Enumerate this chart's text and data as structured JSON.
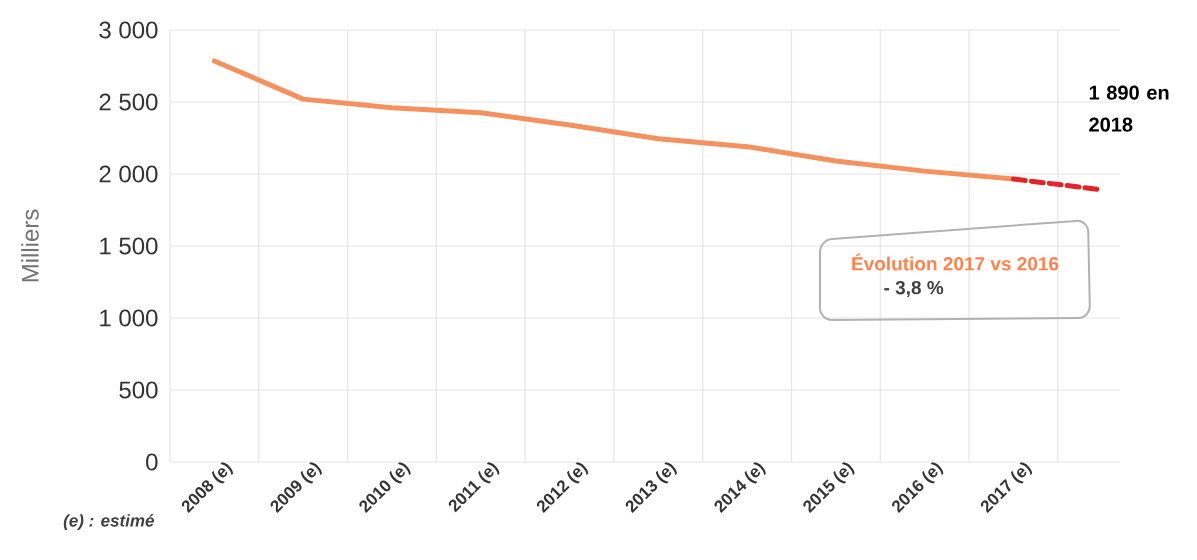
{
  "chart_data": {
    "type": "line",
    "ylabel": "Milliers",
    "categories": [
      "2008 (e)",
      "2009 (e)",
      "2010 (e)",
      "2011 (e)",
      "2012 (e)",
      "2013 (e)",
      "2014 (e)",
      "2015 (e)",
      "2016 (e)",
      "2017 (e)",
      null
    ],
    "series": [
      {
        "color": "#f4915e",
        "line_style": "solid",
        "values": [
          2785,
          2520,
          2460,
          2425,
          2340,
          2245,
          2190,
          2090,
          2020,
          1965,
          null
        ]
      },
      {
        "color": "#e3242b",
        "line_style": "dashed",
        "values": [
          null,
          null,
          null,
          null,
          null,
          null,
          null,
          null,
          null,
          1965,
          1890
        ]
      }
    ],
    "ylim": [
      0,
      3000
    ],
    "yticks": [
      0,
      500,
      {
        "value": 1000,
        "label": "1 000"
      },
      {
        "value": 1500,
        "label": "1 500"
      },
      {
        "value": 2000,
        "label": "2 000"
      },
      {
        "value": 2500,
        "label": "2 500"
      },
      {
        "value": 3000,
        "label": "3 000"
      }
    ],
    "grid": true,
    "marker": "none",
    "annotations": [
      "(e) : estimé",
      "Évolution 2017 vs 2016",
      "- 3,8 %",
      "1 890 en 2018"
    ]
  }
}
